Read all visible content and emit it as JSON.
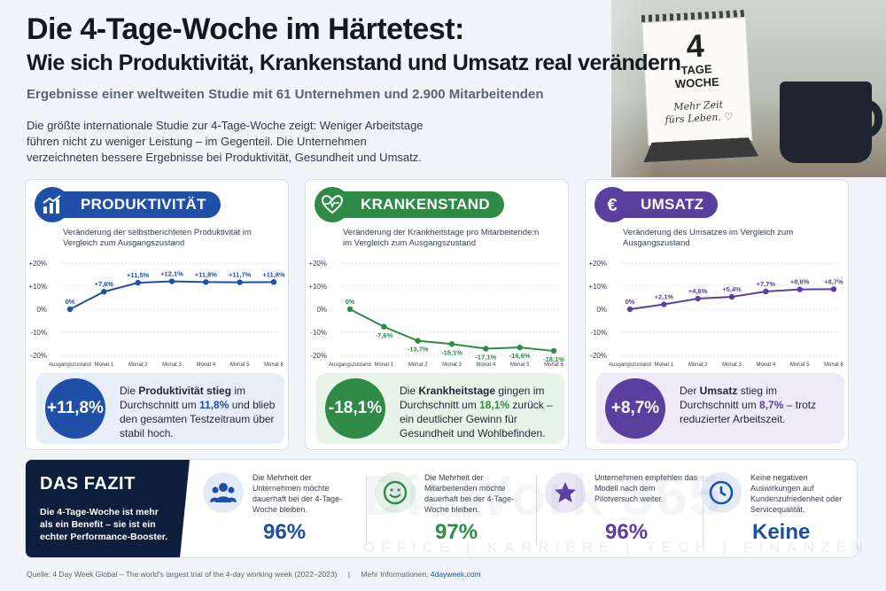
{
  "header": {
    "title_line1": "Die 4-Tage-Woche im Härtetest:",
    "title_line2": "Wie sich Produktivität, Krankenstand und Umsatz real verändern",
    "subtitle": "Ergebnisse einer weltweiten Studie mit 61 Unternehmen und 2.900 Mitarbeitenden",
    "intro": "Die größte internationale Studie zur 4-Tage-Woche zeigt: Weniger Arbeitstage führen nicht zu weniger Leistung – im Gegenteil. Die Unternehmen verzeichneten bessere Ergebnisse bei Produktivität, Gesundheit und Umsatz."
  },
  "calendar": {
    "number": "4",
    "line1": "TAGE",
    "line2": "WOCHE",
    "script1": "Mehr Zeit",
    "script2": "fürs Leben. ♡"
  },
  "colors": {
    "blue": "#1f4fa6",
    "green": "#2f8a46",
    "purple": "#5a3f9e"
  },
  "cards": [
    {
      "title": "PRODUKTIVITÄT",
      "icon": "bar-chart-icon",
      "description": "Veränderung der selbstberichteten Produktivität im Vergleich zum Ausgangszustand",
      "result_value": "+11,8%",
      "result_pre": "Die ",
      "result_bold1": "Produktivität stieg",
      "result_mid": " im Durchschnitt um ",
      "result_bold2": "11,8%",
      "result_post": " und blieb den gesamten Testzeitraum über stabil hoch."
    },
    {
      "title": "KRANKENSTAND",
      "icon": "heartbeat-icon",
      "description": "Veränderung der Krankheitstage pro Mitarbeitende:n im Vergleich zum Ausgangszustand",
      "result_value": "-18,1%",
      "result_pre": "Die ",
      "result_bold1": "Krankheitstage",
      "result_mid": " gingen im Durchschnitt um ",
      "result_bold2": "18,1%",
      "result_post": " zurück – ein deutlicher Gewinn für Gesundheit und Wohlbefinden."
    },
    {
      "title": "UMSATZ",
      "icon": "euro-icon",
      "description": "Veränderung des Umsatzes im Vergleich zum Ausgangszustand",
      "result_value": "+8,7%",
      "result_pre": "Der ",
      "result_bold1": "Umsatz",
      "result_mid": " stieg im Durchschnitt um ",
      "result_bold2": "8,7%",
      "result_post": " – trotz reduzierter Arbeitszeit."
    }
  ],
  "chart_data": [
    {
      "type": "line",
      "title": "PRODUKTIVITÄT",
      "categories": [
        "Ausgangszustand",
        "Monat 1",
        "Monat 2",
        "Monat 3",
        "Monat 4",
        "Monat 5",
        "Monat 6"
      ],
      "values": [
        0,
        7.6,
        11.5,
        12.1,
        11.8,
        11.7,
        11.8
      ],
      "labels": [
        "0%",
        "+7,6%",
        "+11,5%",
        "+12,1%",
        "+11,8%",
        "+11,7%",
        "+11,8%"
      ],
      "yticks": [
        "+20%",
        "+10%",
        "0%",
        "-10%",
        "-20%"
      ],
      "ylim": [
        -20,
        20
      ],
      "grid": true
    },
    {
      "type": "line",
      "title": "KRANKENSTAND",
      "categories": [
        "Ausgangszustand",
        "Monat 1",
        "Monat 2",
        "Monat 3",
        "Monat 4",
        "Monat 5",
        "Monat 6"
      ],
      "values": [
        0,
        -7.6,
        -13.7,
        -15.1,
        -17.1,
        -16.6,
        -18.1
      ],
      "labels": [
        "0%",
        "-7,6%",
        "-13,7%",
        "-15,1%",
        "-17,1%",
        "-16,6%",
        "-18,1%"
      ],
      "yticks": [
        "+20%",
        "+10%",
        "0%",
        "-10%",
        "-20%"
      ],
      "ylim": [
        -20,
        20
      ],
      "grid": true
    },
    {
      "type": "line",
      "title": "UMSATZ",
      "categories": [
        "Ausgangszustand",
        "Monat 1",
        "Monat 2",
        "Monat 3",
        "Monat 4",
        "Monat 5",
        "Monat 6"
      ],
      "values": [
        0,
        2.1,
        4.6,
        5.4,
        7.7,
        8.6,
        8.7
      ],
      "labels": [
        "0%",
        "+2,1%",
        "+4,6%",
        "+5,4%",
        "+7,7%",
        "+8,6%",
        "+8,7%"
      ],
      "yticks": [
        "+20%",
        "+10%",
        "0%",
        "-10%",
        "-20%"
      ],
      "ylim": [
        -20,
        20
      ],
      "grid": true
    }
  ],
  "fazit": {
    "title": "DAS FAZIT",
    "text": "Die 4-Tage-Woche ist mehr als ein Benefit – sie ist ein echter Performance-Booster.",
    "items": [
      {
        "icon": "people-icon",
        "text": "Die Mehrheit der Unternehmen möchte dauerhaft bei der 4-Tage-Woche bleiben.",
        "value": "96%"
      },
      {
        "icon": "smiley-icon",
        "text": "Die Mehrheit der Mitarbeitenden möchte dauerhaft bei der 4-Tage-Woche bleiben.",
        "value": "97%"
      },
      {
        "icon": "star-icon",
        "text": "Unternehmen empfehlen das Modell nach dem Pilotversuch weiter.",
        "value": "96%"
      },
      {
        "icon": "clock-icon",
        "text": "Keine negativen Auswirkungen auf Kundenzufriedenheit oder Servicequalität.",
        "value": "Keine"
      }
    ]
  },
  "watermark": {
    "brand": "DieWork 365",
    "tagline": "OFFICE | KARRIERE | TECH | FINANZEN"
  },
  "footer": {
    "source": "Quelle: 4 Day Week Global – The world's largest trial of the 4-day working week (2022–2023)",
    "sep": "|",
    "more_label": "Mehr Informationen: ",
    "more_link": "4dayweek.com"
  }
}
